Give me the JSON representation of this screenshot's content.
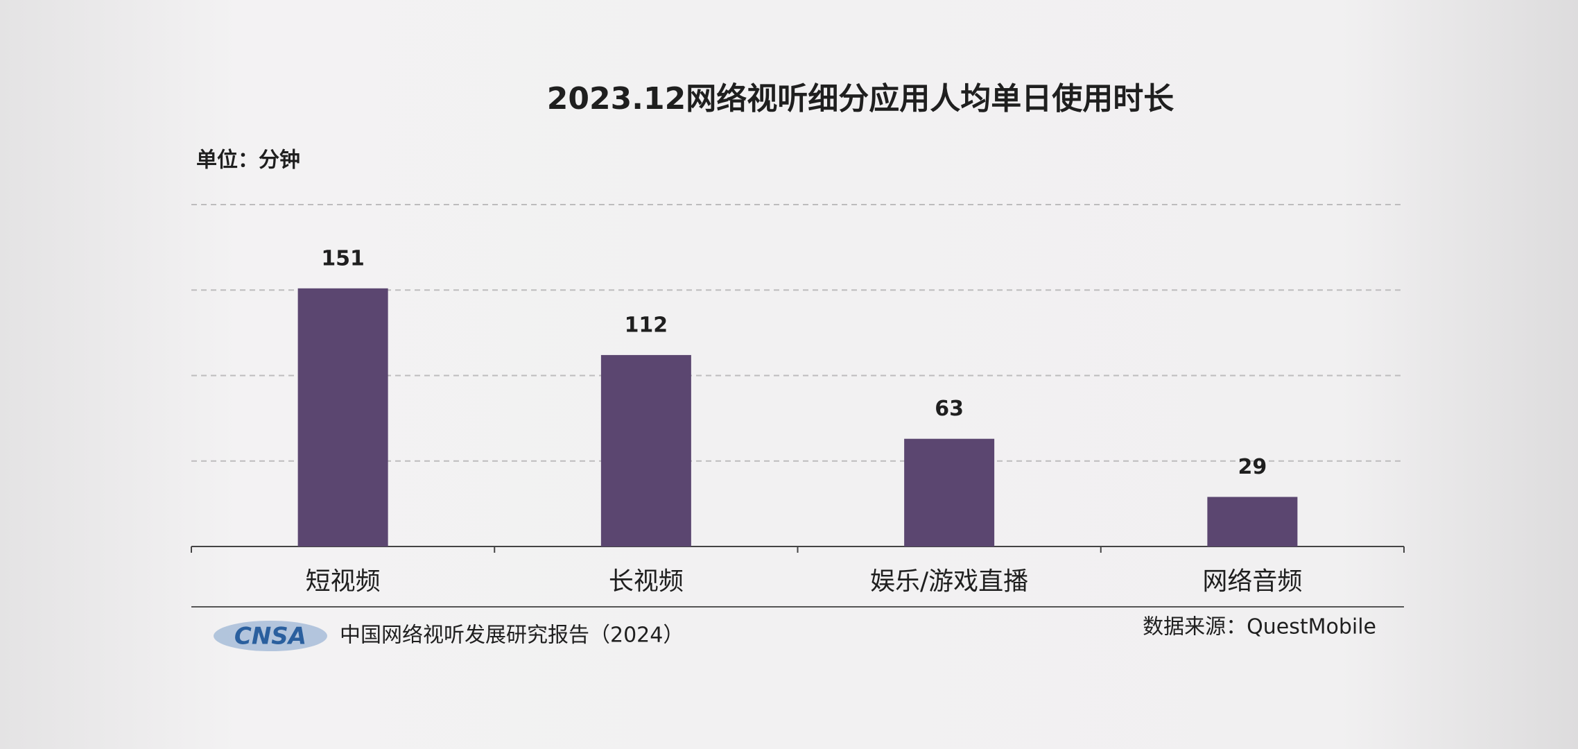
{
  "chart_data": {
    "type": "bar",
    "title": "2023.12网络视听细分应用人均单日使用时长",
    "unit_label": "单位：分钟",
    "categories": [
      "短视频",
      "长视频",
      "娱乐/游戏直播",
      "网络音频"
    ],
    "values": [
      151,
      112,
      63,
      29
    ],
    "color": "#5b4670",
    "ylim": [
      0,
      200
    ],
    "yticks": [
      0,
      50,
      100,
      150,
      200
    ],
    "grid": true,
    "footer": {
      "logo": "CNSA",
      "report": "中国网络视听发展研究报告（2024）",
      "source": "数据来源：QuestMobile"
    }
  }
}
